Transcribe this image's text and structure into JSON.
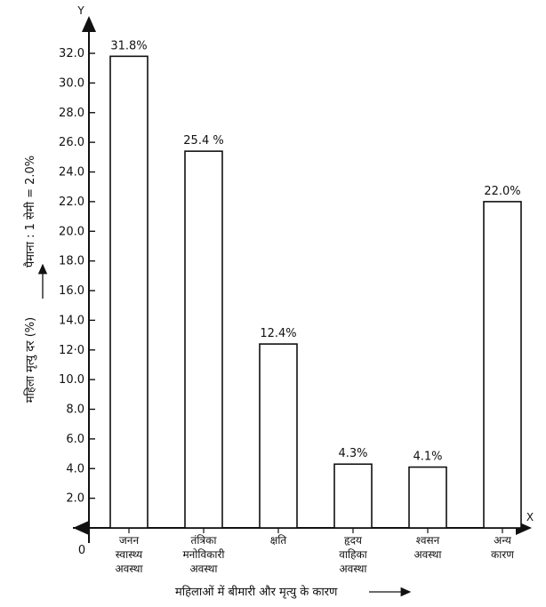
{
  "chart_data": {
    "type": "bar",
    "categories": [
      [
        "जनन",
        "स्वास्थ्य",
        "अवस्था"
      ],
      [
        "तंत्रिका",
        "मनोविकारी",
        "अवस्था"
      ],
      [
        "क्षति"
      ],
      [
        "हृदय",
        "वाहिका",
        "अवस्था"
      ],
      [
        "श्वसन",
        "अवस्था"
      ],
      [
        "अन्य",
        "कारण"
      ]
    ],
    "values": [
      31.8,
      25.4,
      12.4,
      4.3,
      4.1,
      22.0
    ],
    "value_labels": [
      "31.8%",
      "25.4 %",
      "12.4%",
      "4.3%",
      "4.1%",
      "22.0%"
    ],
    "ylim": [
      0,
      32
    ],
    "yticks": [
      "2.0",
      "4.0",
      "6.0",
      "8.0",
      "10.0",
      "12·0",
      "14.0",
      "16.0",
      "18.0",
      "20.0",
      "22.0",
      "24.0",
      "26.0",
      "28.0",
      "30.0",
      "32.0"
    ],
    "origin_label": "0",
    "x_axis_letter": "X",
    "y_axis_letter": "Y",
    "xlabel": "महिलाओं में बीमारी और मृत्यु के कारण",
    "ylabel": "महिला मृत्यु दर (%)",
    "scale_note": "पैमाना : 1 सेमी = 2.0%",
    "grid": false,
    "bar_fill": "#ffffff",
    "bar_stroke": "#111111"
  }
}
